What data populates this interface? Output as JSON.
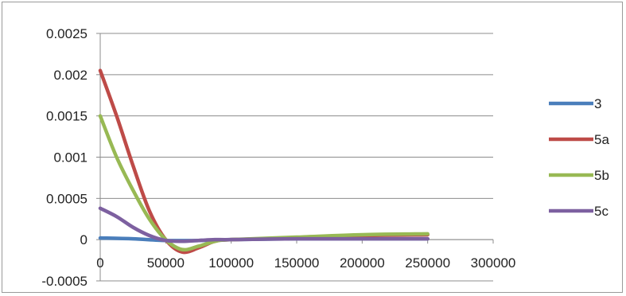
{
  "chart_data": {
    "type": "line",
    "title": "",
    "xlabel": "",
    "ylabel": "",
    "xlim": [
      0,
      300000
    ],
    "ylim": [
      -0.0005,
      0.0025
    ],
    "x_ticks": [
      0,
      50000,
      100000,
      150000,
      200000,
      250000,
      300000
    ],
    "x_tick_labels": [
      "0",
      "50000",
      "100000",
      "150000",
      "200000",
      "250000",
      "300000"
    ],
    "y_ticks": [
      0.0025,
      0.002,
      0.0015,
      0.001,
      0.0005,
      0,
      -0.0005
    ],
    "y_tick_labels": [
      "0.0025",
      "0.002",
      "0.0015",
      "0.001",
      "0.0005",
      "0",
      "-0.0005"
    ],
    "grid": "horizontal",
    "legend_position": "right",
    "series": [
      {
        "name": "3",
        "color": "#4a7ebb",
        "x": [
          0,
          25000,
          50000,
          75000,
          100000,
          150000,
          200000,
          250000
        ],
        "y": [
          2e-05,
          1e-05,
          -1e-05,
          -1e-05,
          0,
          1e-05,
          1e-05,
          1e-05
        ]
      },
      {
        "name": "5a",
        "color": "#be4b48",
        "x": [
          0,
          12500,
          25000,
          37500,
          50000,
          62500,
          75000,
          87500,
          100000,
          150000,
          200000,
          250000
        ],
        "y": [
          0.00205,
          0.0015,
          0.0009,
          0.00035,
          0.0,
          -0.00015,
          -0.0001,
          -2e-05,
          0.0,
          2e-05,
          5e-05,
          6e-05
        ]
      },
      {
        "name": "5b",
        "color": "#98b954",
        "x": [
          0,
          12500,
          25000,
          37500,
          50000,
          62500,
          75000,
          87500,
          100000,
          150000,
          200000,
          250000
        ],
        "y": [
          0.0015,
          0.001,
          0.0006,
          0.00025,
          0.0,
          -0.00012,
          -8e-05,
          -2e-05,
          0.0,
          3e-05,
          6e-05,
          7e-05
        ]
      },
      {
        "name": "5c",
        "color": "#7d60a0",
        "x": [
          0,
          12500,
          25000,
          37500,
          50000,
          62500,
          75000,
          87500,
          100000,
          150000,
          200000,
          250000
        ],
        "y": [
          0.00038,
          0.00028,
          0.00015,
          5e-05,
          -1e-05,
          -2e-05,
          -1e-05,
          0,
          0,
          1e-05,
          1e-05,
          1e-05
        ]
      }
    ]
  }
}
